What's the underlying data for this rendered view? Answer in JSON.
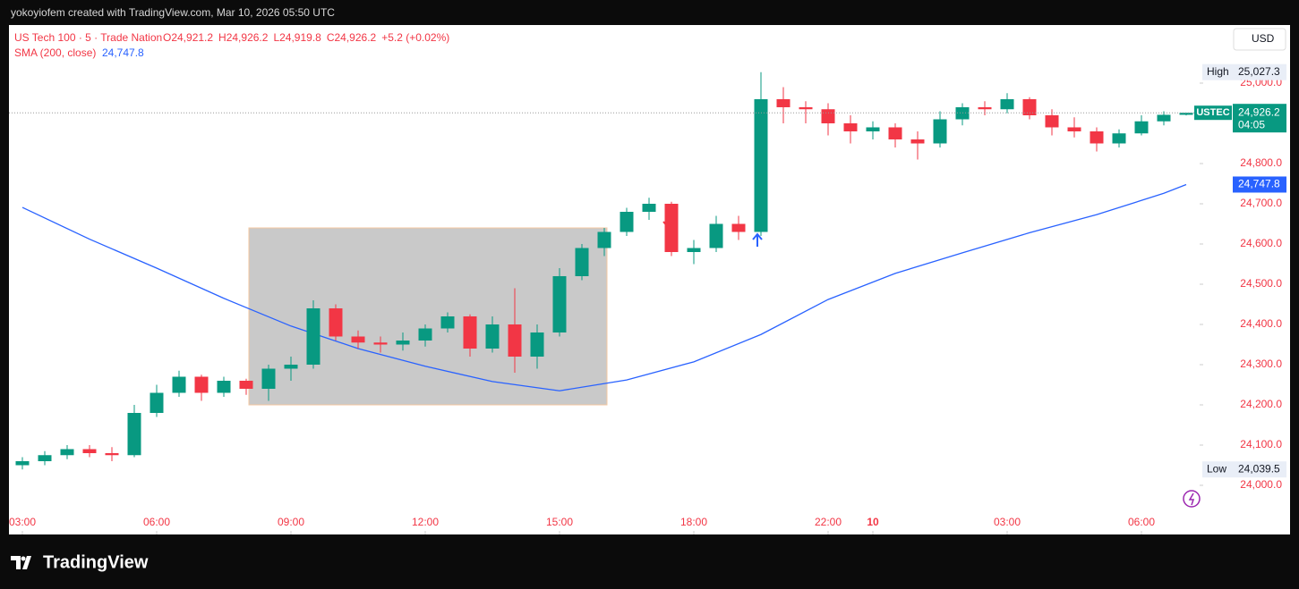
{
  "header": {
    "credit": "yokoyiofem created with TradingView.com, Mar 10, 2026 05:50 UTC",
    "currency": "USD",
    "brand": "TradingView"
  },
  "chart_data": {
    "type": "candlestick",
    "title": "US Tech 100 · 5 · Trade Nation",
    "ohlc_legend": [
      "O24,921.2",
      "H24,926.2",
      "L24,919.8",
      "C24,926.2",
      "+5.2 (+0.02%)"
    ],
    "indicator": {
      "name": "SMA (200, close)",
      "label": "24,747.8",
      "color": "#2962ff",
      "x": [
        0,
        3,
        6,
        9,
        12,
        15,
        18,
        21,
        24,
        27,
        30,
        33,
        36,
        39,
        42,
        45,
        48,
        51,
        52
      ],
      "values": [
        24691,
        24612,
        24540,
        24465,
        24396,
        24340,
        24296,
        24258,
        24235,
        24262,
        24307,
        24375,
        24462,
        24527,
        24578,
        24628,
        24673,
        24726,
        24747.8
      ]
    },
    "up_color": "#089981",
    "down_color": "#f23645",
    "candles": [
      [
        24050,
        24070,
        24039.5,
        24060
      ],
      [
        24060,
        24085,
        24050,
        24075
      ],
      [
        24075,
        24100,
        24065,
        24090
      ],
      [
        24090,
        24100,
        24070,
        24080
      ],
      [
        24080,
        24095,
        24060,
        24075
      ],
      [
        24075,
        24200,
        24070,
        24180
      ],
      [
        24180,
        24250,
        24170,
        24230
      ],
      [
        24230,
        24285,
        24220,
        24270
      ],
      [
        24270,
        24275,
        24210,
        24230
      ],
      [
        24230,
        24270,
        24220,
        24260
      ],
      [
        24260,
        24265,
        24225,
        24240
      ],
      [
        24240,
        24300,
        24210,
        24290
      ],
      [
        24290,
        24320,
        24260,
        24300
      ],
      [
        24300,
        24460,
        24290,
        24440
      ],
      [
        24440,
        24450,
        24360,
        24370
      ],
      [
        24370,
        24385,
        24340,
        24355
      ],
      [
        24355,
        24370,
        24330,
        24350
      ],
      [
        24350,
        24380,
        24335,
        24360
      ],
      [
        24360,
        24400,
        24345,
        24390
      ],
      [
        24390,
        24430,
        24380,
        24420
      ],
      [
        24420,
        24425,
        24320,
        24340
      ],
      [
        24340,
        24420,
        24330,
        24400
      ],
      [
        24400,
        24490,
        24280,
        24320
      ],
      [
        24320,
        24400,
        24290,
        24380
      ],
      [
        24380,
        24540,
        24370,
        24520
      ],
      [
        24520,
        24600,
        24510,
        24590
      ],
      [
        24590,
        24640,
        24570,
        24630
      ],
      [
        24630,
        24690,
        24620,
        24680
      ],
      [
        24680,
        24715,
        24660,
        24700
      ],
      [
        24700,
        24705,
        24570,
        24580
      ],
      [
        24580,
        24610,
        24550,
        24590
      ],
      [
        24590,
        24670,
        24580,
        24650
      ],
      [
        24650,
        24670,
        24610,
        24630
      ],
      [
        24630,
        25027.3,
        24620,
        24960
      ],
      [
        24960,
        24990,
        24900,
        24940
      ],
      [
        24940,
        24955,
        24900,
        24935
      ],
      [
        24935,
        24950,
        24870,
        24900
      ],
      [
        24900,
        24920,
        24850,
        24880
      ],
      [
        24880,
        24905,
        24860,
        24890
      ],
      [
        24890,
        24900,
        24840,
        24860
      ],
      [
        24860,
        24880,
        24810,
        24850
      ],
      [
        24850,
        24930,
        24840,
        24910
      ],
      [
        24910,
        24950,
        24895,
        24940
      ],
      [
        24940,
        24955,
        24920,
        24935
      ],
      [
        24935,
        24975,
        24925,
        24960
      ],
      [
        24960,
        24965,
        24910,
        24920
      ],
      [
        24920,
        24935,
        24870,
        24890
      ],
      [
        24890,
        24915,
        24865,
        24880
      ],
      [
        24880,
        24890,
        24830,
        24850
      ],
      [
        24850,
        24885,
        24840,
        24875
      ],
      [
        24875,
        24920,
        24870,
        24905
      ],
      [
        24905,
        24930,
        24895,
        24921.2
      ],
      [
        24921.2,
        24926.2,
        24919.8,
        24926.2
      ]
    ],
    "xlim": [
      -0.6,
      52.6
    ],
    "xticks": [
      {
        "value": 0,
        "label": "03:00"
      },
      {
        "value": 6,
        "label": "06:00"
      },
      {
        "value": 12,
        "label": "09:00"
      },
      {
        "value": 18,
        "label": "12:00"
      },
      {
        "value": 24,
        "label": "15:00"
      },
      {
        "value": 30,
        "label": "18:00"
      },
      {
        "value": 36,
        "label": "22:00"
      },
      {
        "value": 38,
        "label": "10"
      },
      {
        "value": 44,
        "label": "03:00"
      },
      {
        "value": 50,
        "label": "06:00"
      }
    ],
    "ylim": [
      23877.8,
      25144.4
    ],
    "yticks": [
      {
        "value": 24000,
        "label": "24,000.0"
      },
      {
        "value": 24100,
        "label": "24,100.0"
      },
      {
        "value": 24200,
        "label": "24,200.0"
      },
      {
        "value": 24300,
        "label": "24,300.0"
      },
      {
        "value": 24400,
        "label": "24,400.0"
      },
      {
        "value": 24500,
        "label": "24,500.0"
      },
      {
        "value": 24600,
        "label": "24,600.0"
      },
      {
        "value": 24700,
        "label": "24,700.0"
      },
      {
        "value": 24800,
        "label": "24,800.0"
      },
      {
        "value": 25000,
        "label": "25,000.0"
      }
    ],
    "price_tags": [
      {
        "name": "High",
        "value": 25027.3,
        "label": "25,027.3"
      },
      {
        "name": "USTEC",
        "value": 24926.2,
        "label": "24,926.2",
        "sub": "04:05",
        "color": "#089981"
      },
      {
        "name": "Low",
        "value": 24039.5,
        "label": "24,039.5"
      }
    ]
  }
}
